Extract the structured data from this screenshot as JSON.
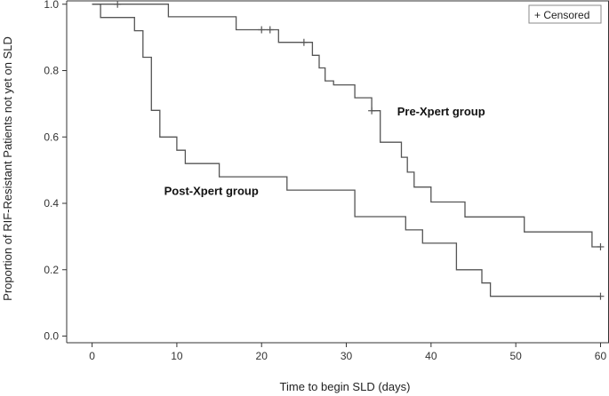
{
  "chart_data": {
    "type": "line",
    "subtype": "kaplan-meier step",
    "xlabel": "Time to begin SLD (days)",
    "ylabel": "Proportion of RIF-Resistant Patients not yet on SLD",
    "xlim": [
      -3,
      61
    ],
    "ylim": [
      -0.02,
      1.01
    ],
    "xticks": [
      0,
      10,
      20,
      30,
      40,
      50,
      60
    ],
    "yticks": [
      0.0,
      0.2,
      0.4,
      0.6,
      0.8,
      1.0
    ],
    "xtick_labels": [
      "0",
      "10",
      "20",
      "30",
      "40",
      "50",
      "60"
    ],
    "ytick_labels": [
      "0.0",
      "0.2",
      "0.4",
      "0.6",
      "0.8",
      "1.0"
    ],
    "grid": false,
    "legend": {
      "position": "top-right",
      "entries": [
        "+ Censored"
      ]
    },
    "line_color": "#555555",
    "series": [
      {
        "name": "Pre-Xpert group",
        "steps": [
          [
            0,
            1.0
          ],
          [
            9,
            0.962
          ],
          [
            17,
            0.923
          ],
          [
            22,
            0.885
          ],
          [
            26,
            0.846
          ],
          [
            26.8,
            0.808
          ],
          [
            27.5,
            0.769
          ],
          [
            28.5,
            0.757
          ],
          [
            31,
            0.718
          ],
          [
            33,
            0.679
          ],
          [
            34,
            0.584
          ],
          [
            36.5,
            0.539
          ],
          [
            37.2,
            0.494
          ],
          [
            38,
            0.449
          ],
          [
            40,
            0.404
          ],
          [
            44,
            0.359
          ],
          [
            51,
            0.314
          ],
          [
            59,
            0.269
          ],
          [
            60,
            0.269
          ]
        ],
        "censored": [
          [
            3,
            1.0
          ],
          [
            20,
            0.923
          ],
          [
            21,
            0.923
          ],
          [
            25,
            0.885
          ],
          [
            33,
            0.679
          ],
          [
            60,
            0.269
          ]
        ]
      },
      {
        "name": "Post-Xpert group",
        "steps": [
          [
            0,
            1.0
          ],
          [
            1,
            0.96
          ],
          [
            5,
            0.92
          ],
          [
            6,
            0.84
          ],
          [
            7,
            0.68
          ],
          [
            8,
            0.6
          ],
          [
            10,
            0.56
          ],
          [
            11,
            0.52
          ],
          [
            15,
            0.48
          ],
          [
            23,
            0.44
          ],
          [
            31,
            0.36
          ],
          [
            37,
            0.32
          ],
          [
            39,
            0.28
          ],
          [
            43,
            0.2
          ],
          [
            46,
            0.16
          ],
          [
            47,
            0.12
          ],
          [
            60,
            0.12
          ]
        ],
        "censored": [
          [
            60,
            0.12
          ]
        ]
      }
    ],
    "annotations": [
      {
        "text": "Pre-Xpert group",
        "x": 36,
        "y": 0.665
      },
      {
        "text": "Post-Xpert group",
        "x": 8.5,
        "y": 0.425
      }
    ]
  }
}
